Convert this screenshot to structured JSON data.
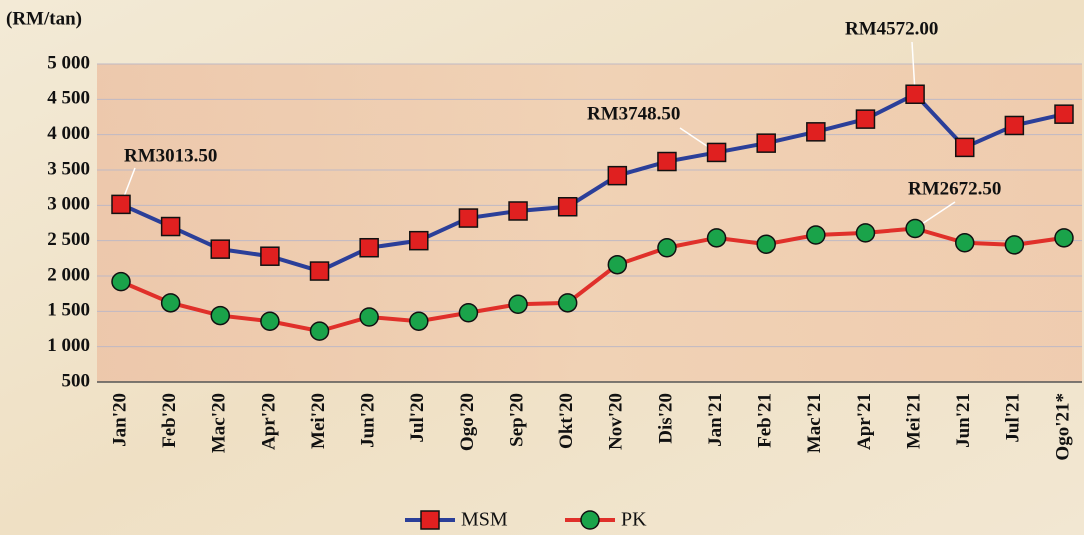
{
  "chart_data": {
    "type": "line",
    "y_label": "(RM/tan)",
    "categories": [
      "Jan'20",
      "Feb'20",
      "Mac'20",
      "Apr'20",
      "Mei'20",
      "Jun'20",
      "Jul'20",
      "Ogo'20",
      "Sep'20",
      "Okt'20",
      "Nov'20",
      "Dis'20",
      "Jan'21",
      "Feb'21",
      "Mac'21",
      "Apr'21",
      "Mei'21",
      "Jun'21",
      "Jul'21",
      "Ogo'21*"
    ],
    "series": [
      {
        "name": "MSM",
        "color": "#2b3f99",
        "marker_color": "#e02020",
        "marker": "square",
        "values": [
          3013.5,
          2700,
          2380,
          2280,
          2070,
          2400,
          2500,
          2820,
          2920,
          2980,
          3420,
          3620,
          3748.5,
          3880,
          4040,
          4220,
          4572,
          3820,
          4130,
          4290
        ]
      },
      {
        "name": "PK",
        "color": "#e0302a",
        "marker_color": "#1aa34a",
        "marker": "circle",
        "values": [
          1920,
          1620,
          1440,
          1360,
          1220,
          1420,
          1360,
          1480,
          1600,
          1620,
          2160,
          2400,
          2540,
          2450,
          2580,
          2610,
          2672.5,
          2470,
          2440,
          2540
        ]
      }
    ],
    "annotations": [
      "RM3013.50",
      "RM3748.50",
      "RM4572.00",
      "RM2672.50"
    ],
    "ylim": [
      500,
      5000
    ],
    "yticks": [
      500,
      {
        "value": 1000,
        "label": "1 000"
      },
      {
        "value": 1500,
        "label": "1 500"
      },
      {
        "value": 2000,
        "label": "2 000"
      },
      {
        "value": 2500,
        "label": "2 500"
      },
      {
        "value": 3000,
        "label": "3 000"
      },
      {
        "value": 3500,
        "label": "3 500"
      },
      {
        "value": 4000,
        "label": "4 000"
      },
      {
        "value": 4500,
        "label": "4 500"
      },
      {
        "value": 5000,
        "label": "5 000"
      }
    ],
    "grid": true,
    "legend": "bottom"
  }
}
